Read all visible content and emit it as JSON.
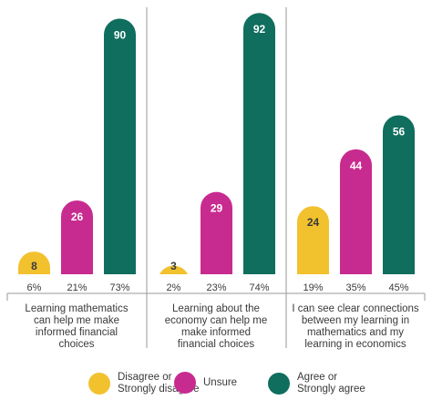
{
  "chart_data": {
    "type": "bar",
    "categories": [
      "Learning mathematics can help me make informed financial choices",
      "Learning about the economy can help me make informed financial choices",
      "I can see clear connections between my learning in mathematics and my learning in economics"
    ],
    "series": [
      {
        "name": "Disagree or Strongly disagree",
        "color": "#f2c12e",
        "values": [
          8,
          3,
          24
        ],
        "percent_labels": [
          "6%",
          "2%",
          "19%"
        ]
      },
      {
        "name": "Unsure",
        "color": "#c82b8f",
        "values": [
          26,
          29,
          44
        ],
        "percent_labels": [
          "21%",
          "23%",
          "35%"
        ]
      },
      {
        "name": "Agree or Strongly agree",
        "color": "#0f6e5e",
        "values": [
          90,
          92,
          56
        ],
        "percent_labels": [
          "73%",
          "74%",
          "45%"
        ]
      }
    ],
    "ylim": [
      0,
      94
    ],
    "grid": false,
    "legend_position": "bottom"
  },
  "category_lines": [
    [
      "Learning mathematics",
      "can help me make",
      "informed financial",
      "choices"
    ],
    [
      "Learning about the",
      "economy can help me",
      "make informed",
      "financial choices"
    ],
    [
      "I can see clear connections",
      "between my learning in",
      "mathematics and my",
      "learning in economics"
    ]
  ],
  "legend": [
    {
      "lines": [
        "Disagree or",
        "Strongly disagree"
      ],
      "color": "#f2c12e"
    },
    {
      "lines": [
        "Unsure"
      ],
      "color": "#c82b8f"
    },
    {
      "lines": [
        "Agree or",
        "Strongly agree"
      ],
      "color": "#0f6e5e"
    }
  ]
}
